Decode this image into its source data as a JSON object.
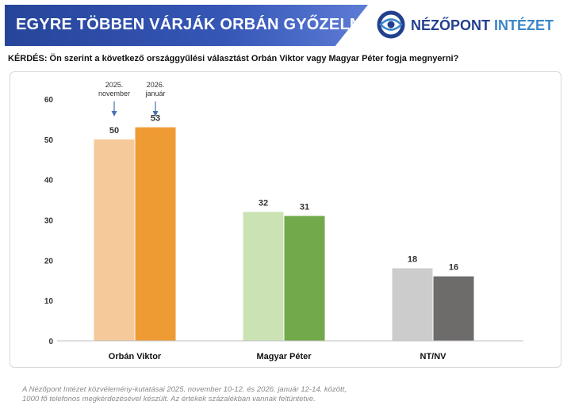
{
  "header": {
    "title": "EGYRE TÖBBEN VÁRJÁK ORBÁN GYŐZELMÉT",
    "logo_name": "NÉZŐPONT",
    "logo_institute": "INTÉZET"
  },
  "question": "KÉRDÉS: Ön szerint a következő országgyűlési választást Orbán Viktor vagy Magyar Péter fogja megnyerni?",
  "footnote": {
    "line1": "A Nézőpont Intézet közvélemény-kutatásai 2025. november 10-12. és 2026. január 12-14. között,",
    "line2": "1000 fő telefonos megkérdezésével készült. Az értékek százalékban vannak feltüntetve."
  },
  "chart_data": {
    "type": "bar",
    "title": "",
    "xlabel": "",
    "ylabel": "",
    "ylim": [
      0,
      60
    ],
    "yticks": [
      0,
      10,
      20,
      30,
      40,
      50,
      60
    ],
    "grid": false,
    "categories": [
      "Orbán Viktor",
      "Magyar Péter",
      "NT/NV"
    ],
    "series": [
      {
        "name": "2025. november",
        "values": [
          50,
          32,
          18
        ]
      },
      {
        "name": "2026. január",
        "values": [
          53,
          31,
          16
        ]
      }
    ],
    "series_annotation": {
      "2025. november": [
        "2025.",
        "november"
      ],
      "2026. január": [
        "2026.",
        "január"
      ]
    },
    "colors": {
      "Orbán Viktor": [
        "#f6c99a",
        "#ee9b34"
      ],
      "Magyar Péter": [
        "#cbe3b4",
        "#72a94a"
      ],
      "NT/NV": [
        "#cccccc",
        "#6e6b6b"
      ]
    }
  }
}
